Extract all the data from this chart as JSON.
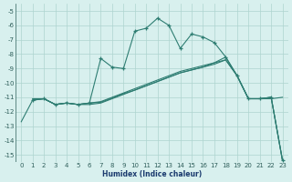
{
  "xlabel": "Humidex (Indice chaleur)",
  "bg_color": "#d8f0ee",
  "grid_color": "#aed4cf",
  "line_color": "#2e7d72",
  "xlim": [
    -0.5,
    23.5
  ],
  "ylim": [
    -15.5,
    -4.5
  ],
  "yticks": [
    -5,
    -6,
    -7,
    -8,
    -9,
    -10,
    -11,
    -12,
    -13,
    -14,
    -15
  ],
  "xticks": [
    0,
    1,
    2,
    3,
    4,
    5,
    6,
    7,
    8,
    9,
    10,
    11,
    12,
    13,
    14,
    15,
    16,
    17,
    18,
    19,
    20,
    21,
    22,
    23
  ],
  "series": [
    {
      "x": [
        1,
        2,
        3,
        4,
        5,
        6,
        7,
        8,
        9,
        10,
        11,
        12,
        13,
        14,
        15,
        16,
        17,
        18,
        19,
        20,
        21,
        22,
        23
      ],
      "y": [
        -11.2,
        -11.1,
        -11.5,
        -11.4,
        -11.5,
        -11.4,
        -8.3,
        -8.9,
        -9.0,
        -6.4,
        -6.2,
        -5.5,
        -6.0,
        -7.6,
        -6.6,
        -6.8,
        -7.2,
        -8.2,
        -9.5,
        -11.1,
        -11.1,
        -11.0,
        -15.4
      ],
      "marker": true
    },
    {
      "x": [
        1,
        2,
        3,
        4,
        5,
        6,
        7,
        8,
        9,
        10,
        11,
        12,
        13,
        14,
        15,
        16,
        17,
        18,
        19,
        20,
        21,
        22,
        23
      ],
      "y": [
        -11.1,
        -11.1,
        -11.5,
        -11.4,
        -11.5,
        -11.4,
        -11.3,
        -11.0,
        -10.7,
        -10.4,
        -10.1,
        -9.8,
        -9.5,
        -9.2,
        -9.0,
        -8.8,
        -8.6,
        -8.2,
        -9.5,
        -11.1,
        -11.1,
        -11.0,
        -15.4
      ],
      "marker": false
    },
    {
      "x": [
        1,
        2,
        3,
        4,
        5,
        6,
        7,
        8,
        9,
        10,
        11,
        12,
        13,
        14,
        15,
        16,
        17,
        18,
        19,
        20,
        21,
        22,
        23
      ],
      "y": [
        -11.2,
        -11.1,
        -11.5,
        -11.4,
        -11.5,
        -11.4,
        -11.35,
        -11.05,
        -10.75,
        -10.5,
        -10.2,
        -9.9,
        -9.6,
        -9.3,
        -9.1,
        -8.9,
        -8.7,
        -8.4,
        -9.5,
        -11.1,
        -11.1,
        -11.1,
        -11.0
      ],
      "marker": false
    },
    {
      "x": [
        0,
        1,
        2,
        3,
        4,
        5,
        6,
        7,
        8,
        9,
        10,
        11,
        12,
        13,
        14,
        15,
        16,
        17,
        18,
        19,
        20,
        21,
        22,
        23
      ],
      "y": [
        -12.7,
        -11.2,
        -11.1,
        -11.5,
        -11.4,
        -11.5,
        -11.5,
        -11.4,
        -11.1,
        -10.8,
        -10.5,
        -10.2,
        -9.9,
        -9.6,
        -9.3,
        -9.1,
        -8.9,
        -8.6,
        -8.4,
        -9.5,
        -11.1,
        -11.1,
        -11.0,
        -15.4
      ],
      "marker": false
    }
  ]
}
